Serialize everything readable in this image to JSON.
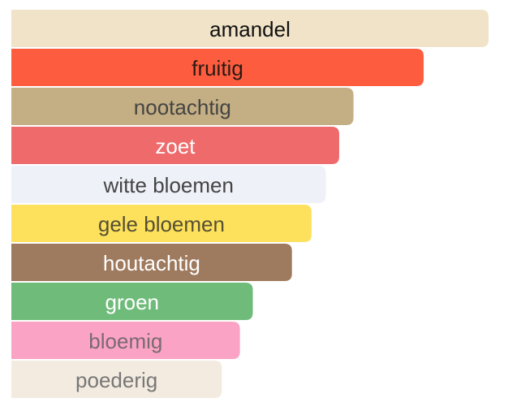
{
  "chart_data": {
    "type": "bar",
    "orientation": "horizontal",
    "categories": [
      "amandel",
      "fruitig",
      "nootachtig",
      "zoet",
      "witte bloemen",
      "gele bloemen",
      "houtachtig",
      "groen",
      "bloemig",
      "poederig"
    ],
    "values": [
      100,
      86.4,
      71.7,
      68.7,
      65.9,
      62.9,
      58.8,
      50.6,
      47.9,
      44.1
    ],
    "colors": [
      "#f0e3c7",
      "#fd5c3f",
      "#c4ae83",
      "#ee6a6b",
      "#eef1f8",
      "#fde05b",
      "#9e7a5e",
      "#6fbc7a",
      "#fba3c4",
      "#f3ebe0"
    ],
    "text_colors": [
      "#111111",
      "#2a1a14",
      "#444444",
      "#ffffff",
      "#444444",
      "#555033",
      "#ffffff",
      "#ffffff",
      "#7a6a72",
      "#777777"
    ]
  }
}
